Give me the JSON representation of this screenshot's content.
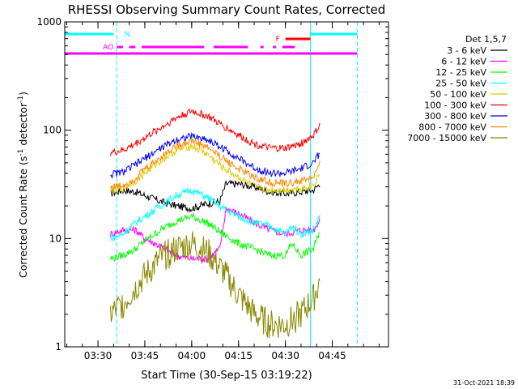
{
  "chart_data": {
    "type": "line",
    "title": "RHESSI Observing Summary Count Rates, Corrected",
    "xlabel": "Start Time (30-Sep-15 03:19:22)",
    "ylabel_pre": "Corrected Count Rate (s",
    "ylabel_sup1": "-1",
    "ylabel_mid": " detector",
    "ylabel_sup2": "-1",
    "ylabel_post": ")",
    "y_scale": "log",
    "ylim": [
      1,
      1000
    ],
    "x_range_minutes": [
      "03:19:22",
      "05:03:00"
    ],
    "x_ticks": [
      "03:30",
      "03:45",
      "04:00",
      "04:15",
      "04:30",
      "04:45"
    ],
    "y_ticks": [
      "1",
      "10",
      "100",
      "1000"
    ],
    "timestamp": "31-Oct-2021 18:39",
    "legend_title": "Det 1,5,7",
    "series": [
      {
        "name": "3 - 6 keV",
        "color": "#000000",
        "points": [
          [
            "03:34",
            26
          ],
          [
            "03:38",
            28
          ],
          [
            "03:42",
            27
          ],
          [
            "03:45",
            25
          ],
          [
            "03:50",
            22
          ],
          [
            "03:55",
            20
          ],
          [
            "04:00",
            19
          ],
          [
            "04:05",
            21
          ],
          [
            "04:09",
            22
          ],
          [
            "04:11",
            32
          ],
          [
            "04:15",
            32
          ],
          [
            "04:20",
            30
          ],
          [
            "04:25",
            27
          ],
          [
            "04:30",
            26
          ],
          [
            "04:35",
            27
          ],
          [
            "04:39",
            28
          ],
          [
            "04:41",
            32
          ]
        ]
      },
      {
        "name": "6 - 12 keV",
        "color": "#ff00ff",
        "points": [
          [
            "03:34",
            11
          ],
          [
            "03:38",
            12
          ],
          [
            "03:42",
            12
          ],
          [
            "03:45",
            10
          ],
          [
            "03:50",
            8.5
          ],
          [
            "03:55",
            7
          ],
          [
            "04:00",
            6.5
          ],
          [
            "04:05",
            6.5
          ],
          [
            "04:09",
            8
          ],
          [
            "04:11",
            19
          ],
          [
            "04:15",
            17
          ],
          [
            "04:20",
            14
          ],
          [
            "04:25",
            12
          ],
          [
            "04:30",
            11
          ],
          [
            "04:35",
            12
          ],
          [
            "04:39",
            12
          ],
          [
            "04:41",
            15
          ]
        ]
      },
      {
        "name": "12 - 25 keV",
        "color": "#00ff00",
        "points": [
          [
            "03:34",
            6.5
          ],
          [
            "03:38",
            7
          ],
          [
            "03:42",
            8
          ],
          [
            "03:45",
            9.5
          ],
          [
            "03:50",
            12
          ],
          [
            "03:55",
            14.5
          ],
          [
            "04:00",
            16
          ],
          [
            "04:05",
            14
          ],
          [
            "04:10",
            11
          ],
          [
            "04:15",
            9
          ],
          [
            "04:20",
            8
          ],
          [
            "04:25",
            7
          ],
          [
            "04:30",
            7
          ],
          [
            "04:32",
            9
          ],
          [
            "04:35",
            7
          ],
          [
            "04:39",
            8
          ],
          [
            "04:41",
            12
          ]
        ]
      },
      {
        "name": "25 - 50 keV",
        "color": "#00ffff",
        "points": [
          [
            "03:34",
            10
          ],
          [
            "03:38",
            11
          ],
          [
            "03:42",
            14
          ],
          [
            "03:45",
            16
          ],
          [
            "03:50",
            20
          ],
          [
            "03:55",
            25
          ],
          [
            "04:00",
            28
          ],
          [
            "04:05",
            24
          ],
          [
            "04:10",
            19
          ],
          [
            "04:15",
            16
          ],
          [
            "04:20",
            14
          ],
          [
            "04:25",
            13
          ],
          [
            "04:30",
            11
          ],
          [
            "04:32",
            13
          ],
          [
            "04:35",
            11
          ],
          [
            "04:39",
            12
          ],
          [
            "04:41",
            16
          ]
        ]
      },
      {
        "name": "50 - 100 keV",
        "color": "#ddcc00",
        "points": [
          [
            "03:34",
            27
          ],
          [
            "03:38",
            29
          ],
          [
            "03:42",
            34
          ],
          [
            "03:45",
            40
          ],
          [
            "03:50",
            52
          ],
          [
            "03:55",
            65
          ],
          [
            "04:00",
            72
          ],
          [
            "04:05",
            60
          ],
          [
            "04:10",
            45
          ],
          [
            "04:15",
            37
          ],
          [
            "04:20",
            30
          ],
          [
            "04:25",
            28
          ],
          [
            "04:30",
            28
          ],
          [
            "04:35",
            29
          ],
          [
            "04:39",
            31
          ],
          [
            "04:41",
            40
          ]
        ]
      },
      {
        "name": "100 - 300 keV",
        "color": "#ff0000",
        "points": [
          [
            "03:34",
            62
          ],
          [
            "03:38",
            65
          ],
          [
            "03:42",
            75
          ],
          [
            "03:45",
            85
          ],
          [
            "03:50",
            105
          ],
          [
            "03:55",
            130
          ],
          [
            "04:00",
            150
          ],
          [
            "04:05",
            135
          ],
          [
            "04:10",
            110
          ],
          [
            "04:15",
            90
          ],
          [
            "04:20",
            75
          ],
          [
            "04:25",
            68
          ],
          [
            "04:30",
            68
          ],
          [
            "04:35",
            75
          ],
          [
            "04:39",
            90
          ],
          [
            "04:41",
            110
          ]
        ]
      },
      {
        "name": "300 - 800 keV",
        "color": "#0000ff",
        "points": [
          [
            "03:34",
            39
          ],
          [
            "03:38",
            41
          ],
          [
            "03:42",
            48
          ],
          [
            "03:45",
            55
          ],
          [
            "03:50",
            68
          ],
          [
            "03:55",
            82
          ],
          [
            "04:00",
            88
          ],
          [
            "04:05",
            82
          ],
          [
            "04:10",
            68
          ],
          [
            "04:15",
            55
          ],
          [
            "04:20",
            45
          ],
          [
            "04:25",
            40
          ],
          [
            "04:30",
            40
          ],
          [
            "04:35",
            44
          ],
          [
            "04:39",
            50
          ],
          [
            "04:41",
            62
          ]
        ]
      },
      {
        "name": "800 - 7000 keV",
        "color": "#ff8800",
        "points": [
          [
            "03:34",
            30
          ],
          [
            "03:38",
            31
          ],
          [
            "03:42",
            36
          ],
          [
            "03:45",
            44
          ],
          [
            "03:50",
            56
          ],
          [
            "03:55",
            72
          ],
          [
            "04:00",
            80
          ],
          [
            "04:05",
            70
          ],
          [
            "04:10",
            55
          ],
          [
            "04:15",
            44
          ],
          [
            "04:20",
            37
          ],
          [
            "04:25",
            33
          ],
          [
            "04:30",
            32
          ],
          [
            "04:35",
            34
          ],
          [
            "04:39",
            37
          ],
          [
            "04:41",
            48
          ]
        ]
      },
      {
        "name": "7000 - 15000 keV",
        "color": "#888800",
        "points": [
          [
            "03:34",
            2
          ],
          [
            "03:38",
            2.5
          ],
          [
            "03:42",
            3.5
          ],
          [
            "03:45",
            4.5
          ],
          [
            "03:50",
            6.5
          ],
          [
            "03:55",
            8
          ],
          [
            "04:00",
            9
          ],
          [
            "04:05",
            7.5
          ],
          [
            "04:10",
            5
          ],
          [
            "04:15",
            3
          ],
          [
            "04:20",
            2
          ],
          [
            "04:25",
            1.6
          ],
          [
            "04:30",
            1.6
          ],
          [
            "04:35",
            2
          ],
          [
            "04:39",
            2.8
          ],
          [
            "04:41",
            4
          ]
        ]
      }
    ],
    "vertical_markers": [
      {
        "time": "03:19:22",
        "style": "solid",
        "color": "#00ffff"
      },
      {
        "time": "03:36",
        "style": "dashed",
        "color": "#00ffff"
      },
      {
        "time": "04:38",
        "style": "solid",
        "color": "#00ffff"
      },
      {
        "time": "04:53",
        "style": "dashed",
        "color": "#00ffff"
      }
    ],
    "flag_bars": [
      {
        "label": "N",
        "color": "#00ffff",
        "level": 0,
        "segments": [
          [
            "03:19:22",
            "03:35"
          ],
          [
            "04:38",
            "04:53"
          ]
        ]
      },
      {
        "label": "F",
        "color": "#ff0000",
        "level": 1,
        "segments": [
          [
            "04:30",
            "04:38"
          ]
        ]
      },
      {
        "label": "AO",
        "color": "#ff00ff",
        "level": 2,
        "segments": [
          [
            "03:36",
            "03:38"
          ]
        ]
      },
      {
        "label": "",
        "color": "#ff00ff",
        "level": 3,
        "segments": [
          [
            "03:40",
            "03:42"
          ],
          [
            "03:44",
            "04:04"
          ],
          [
            "04:07",
            "04:18"
          ],
          [
            "04:22",
            "04:23"
          ],
          [
            "04:26",
            "04:27"
          ],
          [
            "04:29",
            "04:33"
          ]
        ]
      },
      {
        "label": "",
        "color": "#ff00ff",
        "level": 4,
        "segments": [
          [
            "03:19:22",
            "04:53"
          ]
        ]
      }
    ]
  }
}
